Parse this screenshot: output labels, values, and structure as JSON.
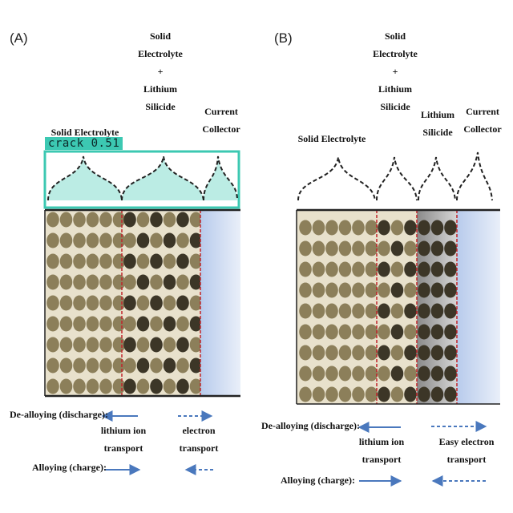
{
  "panel_a": {
    "label": "(A)",
    "header_solid_electrolyte": "Solid Electrolyte",
    "header_mixed": [
      "Solid",
      "Electrolyte",
      "+",
      "Lithium",
      "Silicide"
    ],
    "header_current_collector": [
      "Current",
      "Collector"
    ],
    "detection_tag": "crack 0.51",
    "dealloying_label": "De-alloying  (discharge):",
    "alloying_label": "Alloying (charge):",
    "lithium_ion_label": [
      "lithium ion",
      "transport"
    ],
    "electron_label": [
      "electron",
      "transport"
    ]
  },
  "panel_b": {
    "label": "(B)",
    "header_solid_electrolyte": "Solid Electrolyte",
    "header_mixed": [
      "Solid",
      "Electrolyte",
      "+",
      "Lithium",
      "Silicide"
    ],
    "header_lithium_silicide": [
      "Lithium",
      "Silicide"
    ],
    "header_current_collector": [
      "Current",
      "Collector"
    ],
    "dealloying_label": "De-alloying  (discharge):",
    "alloying_label": "Alloying (charge):",
    "lithium_ion_label": [
      "lithium ion",
      "transport"
    ],
    "electron_label": [
      "Easy electron",
      "transport"
    ]
  },
  "colors": {
    "electrolyte_particle": "#8c7f5a",
    "silicide_particle": "#3c3627",
    "background_fill": "#e8e1cc",
    "collector_fill": "#c7d6ef",
    "boundary_red": "#c0242a",
    "arrow_blue": "#4a78bd",
    "detection_teal": "#3cc8b2"
  },
  "icons": [
    "left-arrow-solid",
    "right-arrow-solid",
    "right-arrow-dashed",
    "left-arrow-dashed",
    "curly-brace"
  ]
}
